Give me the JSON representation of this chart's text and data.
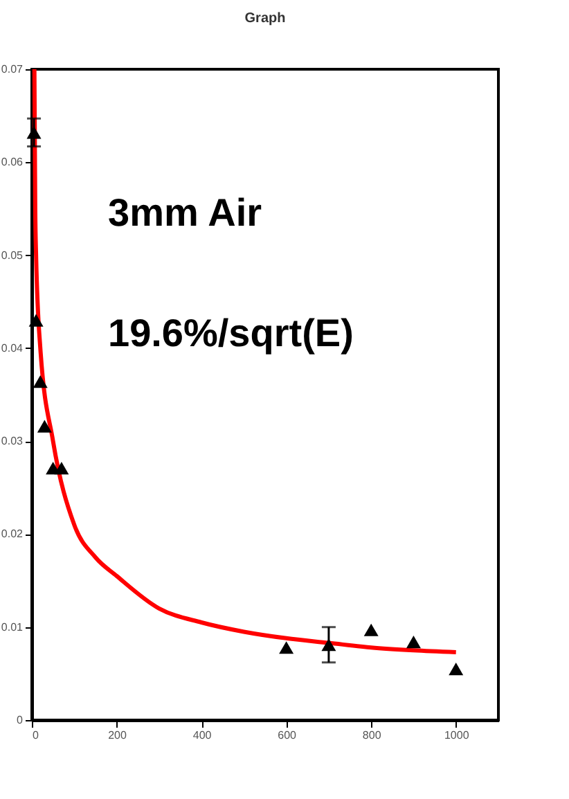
{
  "chart_data": {
    "type": "scatter",
    "title": "Graph",
    "series": [
      {
        "color": "#000000",
        "marker": "triangle",
        "x": [
          5,
          10,
          20,
          30,
          50,
          70,
          600,
          700,
          800,
          900,
          1000
        ],
        "values": [
          0.0632,
          0.043,
          0.0364,
          0.0316,
          0.0271,
          0.0271,
          0.0078,
          0.0081,
          0.0097,
          0.0084,
          0.0055
        ],
        "errors": [
          0.0015,
          null,
          null,
          null,
          null,
          null,
          null,
          0.0019,
          null,
          null,
          null
        ]
      },
      {
        "type": "line",
        "color": "#ff0000",
        "x": [
          6,
          8,
          10,
          20,
          50,
          100,
          150,
          200,
          300,
          400,
          500,
          600,
          700,
          800,
          900,
          1000
        ],
        "values": [
          0.07,
          0.055,
          0.05,
          0.04,
          0.03,
          0.021,
          0.0175,
          0.0155,
          0.012,
          0.0105,
          0.0095,
          0.0088,
          0.0083,
          0.0078,
          0.0075,
          0.0073
        ]
      }
    ],
    "xlim": [
      0,
      1100
    ],
    "xticks": [
      0,
      200,
      400,
      600,
      800,
      1000
    ],
    "ylim": [
      0,
      0.07
    ],
    "yticks": [
      0,
      0.01,
      0.02,
      0.03,
      0.04,
      0.05,
      0.06,
      0.07
    ],
    "annotations": [
      "3mm Air",
      "19.6%/sqrt(E)"
    ],
    "grid": false
  }
}
